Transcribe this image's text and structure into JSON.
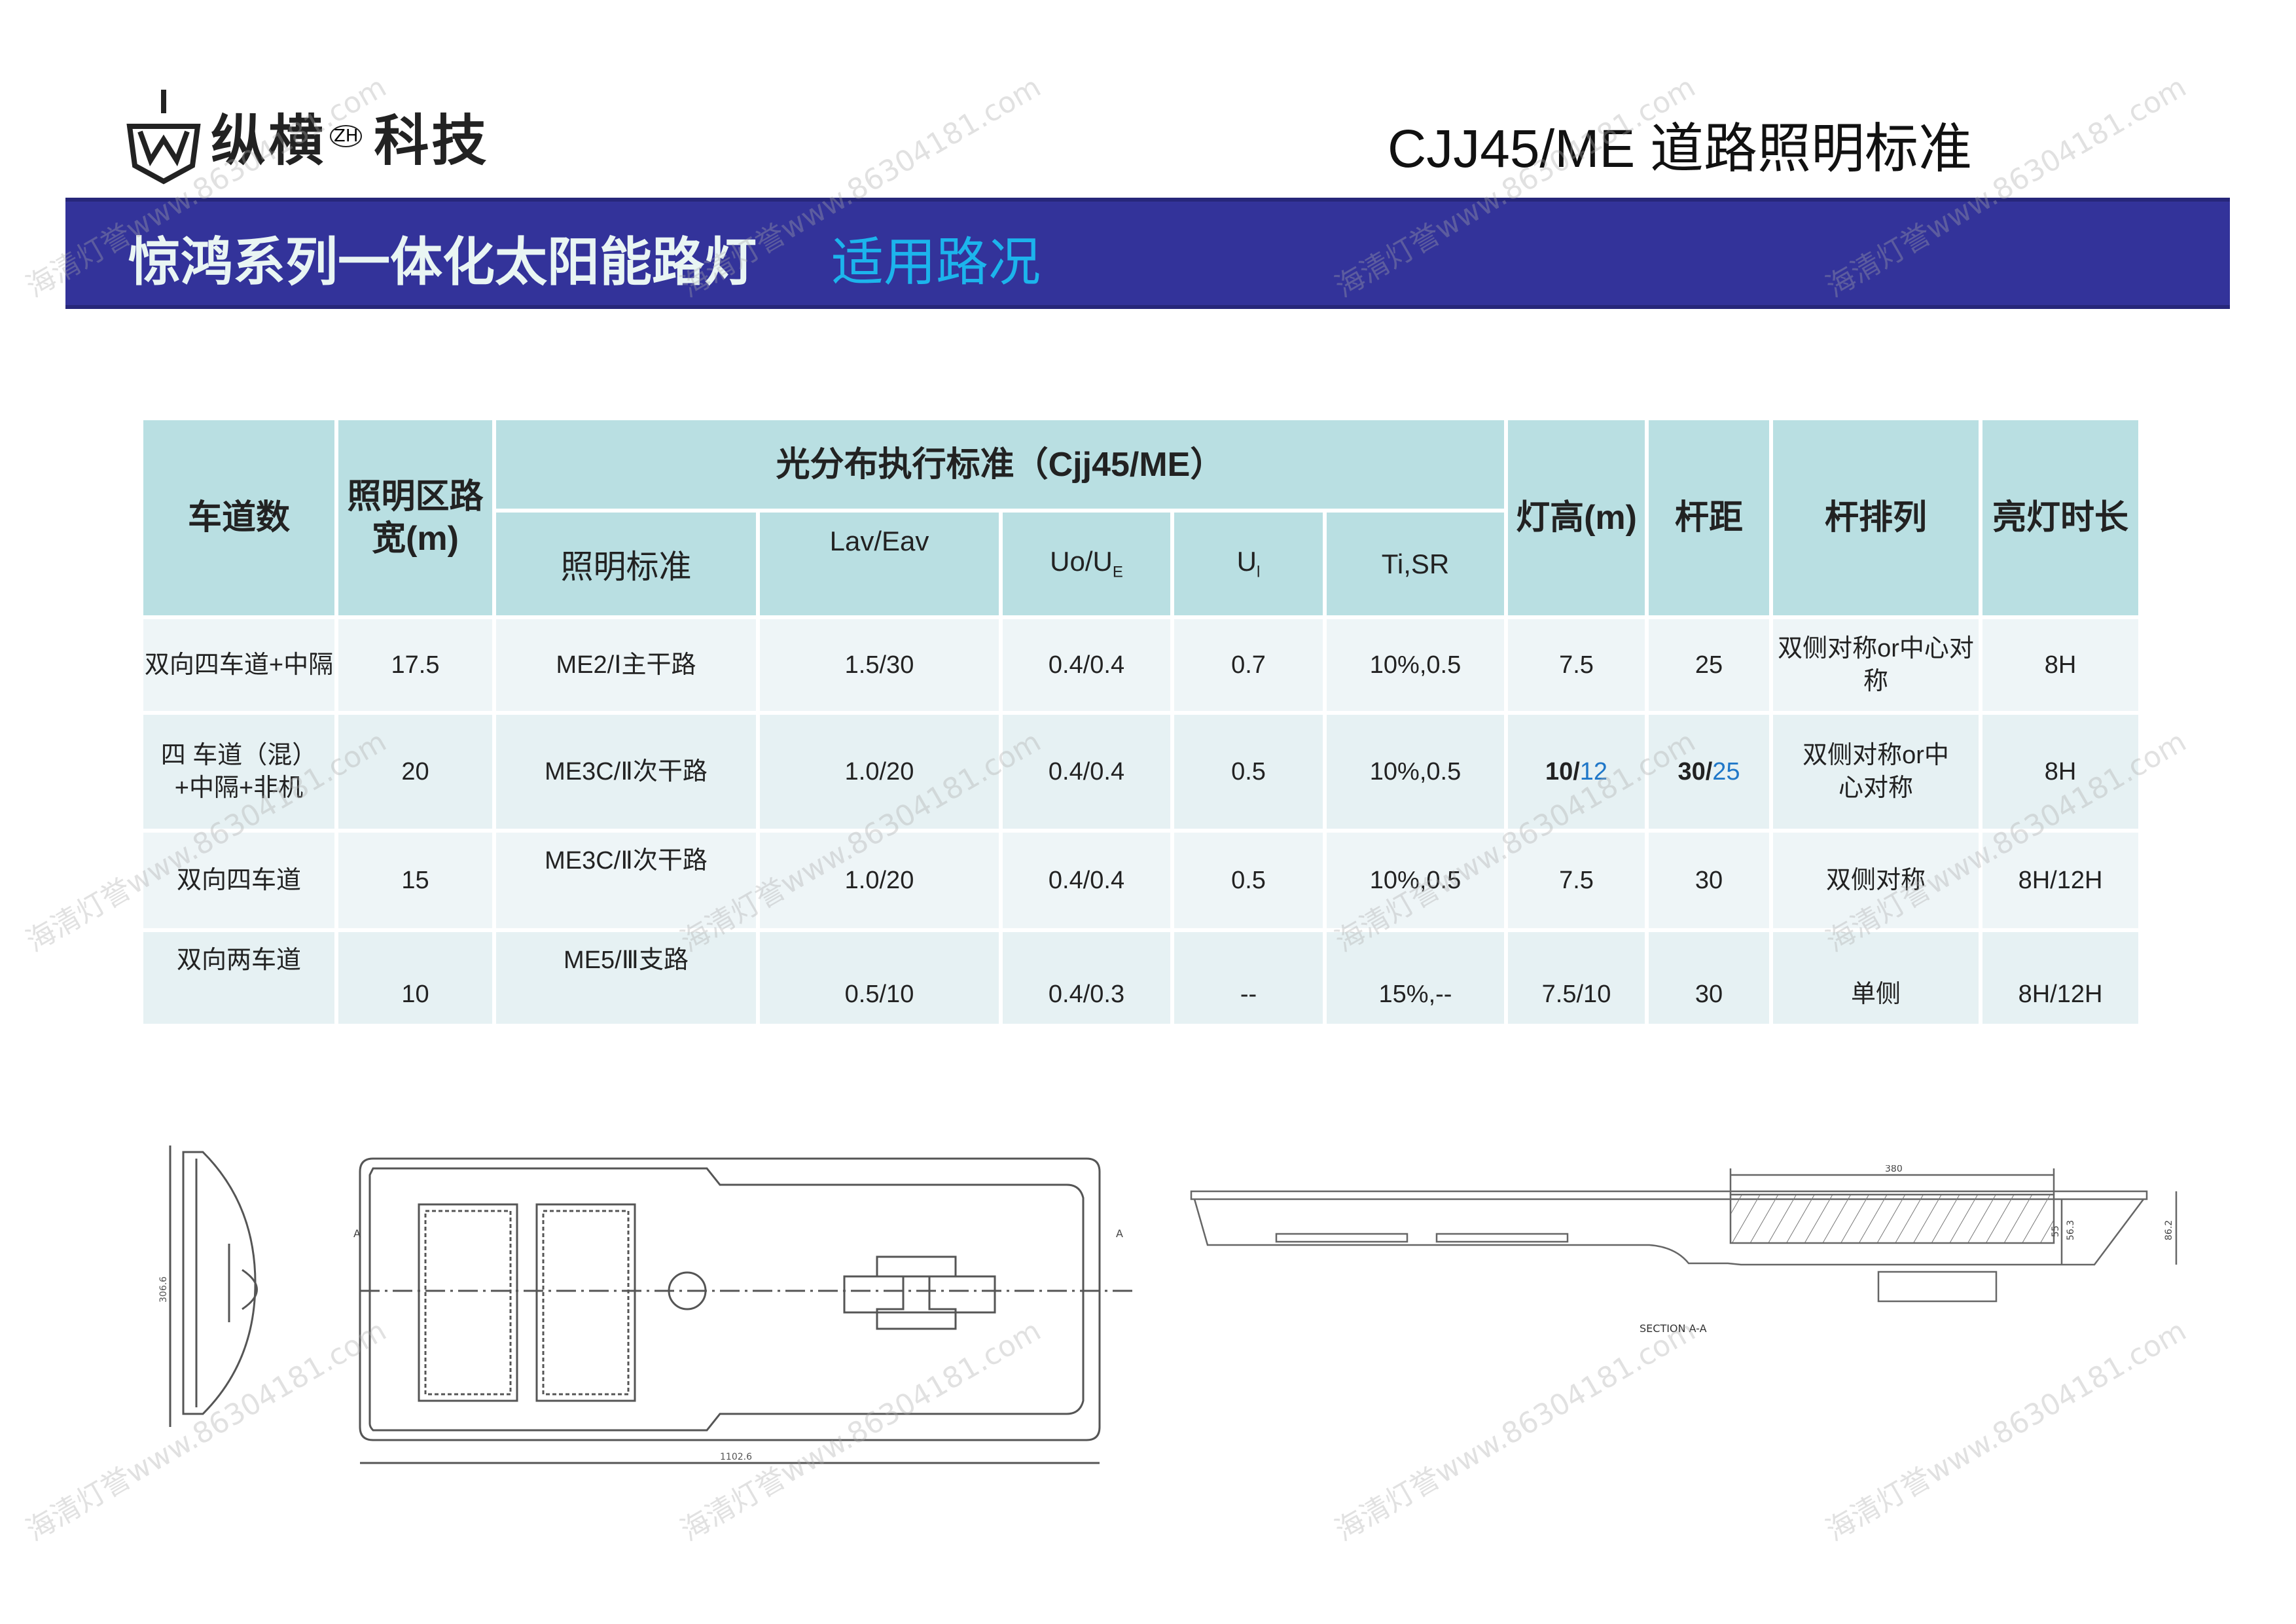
{
  "header": {
    "logo_text": "纵横",
    "logo_reg": "ZH",
    "logo_text2": "科技",
    "doc_title": "CJJ45/ME 道路照明标准"
  },
  "banner": {
    "title": "惊鸿系列一体化太阳能路灯",
    "subtitle": "适用路况",
    "bg_color": "#33339a",
    "subtitle_color": "#1cb4ec"
  },
  "table": {
    "headers": {
      "lanes": "车道数",
      "width": "照明区路宽(m)",
      "group": "光分布执行标准（Cjj45/ME）",
      "standard": "照明标准",
      "lav": "Lav/Eav",
      "uo": "Uo/U",
      "uo_sub": "E",
      "ul": "U",
      "ul_sub": "l",
      "ti": "Ti,SR",
      "height": "灯高(m)",
      "spacing": "杆距",
      "arrangement": "杆排列",
      "hours": "亮灯时长"
    },
    "rows": [
      {
        "lanes": "双向四车道+中隔",
        "width": "17.5",
        "standard": "ME2/Ⅰ主干路",
        "lav": "1.5/30",
        "uo": "0.4/0.4",
        "ul": "0.7",
        "ti": "10%,0.5",
        "height_a": "7.5",
        "height_b": "",
        "spacing_a": "25",
        "spacing_b": "",
        "arrangement": "双侧对称or中心对称",
        "hours": "8H"
      },
      {
        "lanes": "四 车道（混）+中隔+非机",
        "width": "20",
        "standard": "ME3C/Ⅱ次干路",
        "lav": "1.0/20",
        "uo": "0.4/0.4",
        "ul": "0.5",
        "ti": "10%,0.5",
        "height_a": "10/",
        "height_b": "12",
        "spacing_a": "30/",
        "spacing_b": "25",
        "arrangement": "双侧对称or中心对称",
        "hours": "8H"
      },
      {
        "lanes": "双向四车道",
        "width": "15",
        "standard": "ME3C/Ⅱ次干路",
        "lav": "1.0/20",
        "uo": "0.4/0.4",
        "ul": "0.5",
        "ti": "10%,0.5",
        "height_a": "7.5",
        "height_b": "",
        "spacing_a": "30",
        "spacing_b": "",
        "arrangement": "双侧对称",
        "hours": "8H/12H"
      },
      {
        "lanes": "双向两车道",
        "width": "10",
        "standard": "ME5/Ⅲ支路",
        "lav": "0.5/10",
        "uo": "0.4/0.3",
        "ul": "--",
        "ti": "15%,--",
        "height_a": "7.5/10",
        "height_b": "",
        "spacing_a": "30",
        "spacing_b": "",
        "arrangement": "单侧",
        "hours": "8H/12H"
      }
    ]
  },
  "drawings": {
    "section_label": "SECTION A-A",
    "dim_380": "380",
    "dim_55": "55",
    "dim_56_3": "56.3",
    "dim_86_2": "86.2",
    "dim_length": "1102.6",
    "dim_width": "306.6",
    "label_a": "A"
  },
  "watermark": "海清灯誉www.86304181.com"
}
